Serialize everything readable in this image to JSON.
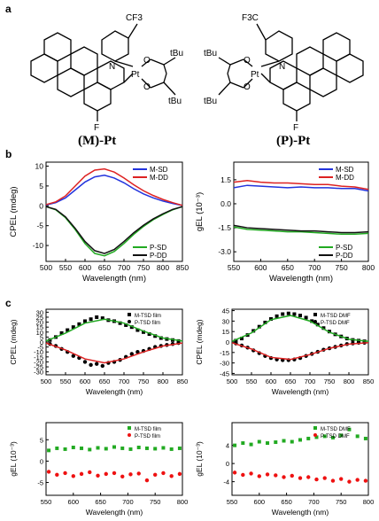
{
  "panel_labels": {
    "a": "a",
    "b": "b",
    "c": "c"
  },
  "molecules": {
    "left": {
      "label": "(M)-Pt",
      "cf3": "CF3",
      "n": "N",
      "pt": "Pt",
      "o1": "O",
      "o2": "O",
      "tbu1": "tBu",
      "tbu2": "tBu",
      "f": "F"
    },
    "right": {
      "label": "(P)-Pt",
      "cf3": "F3C",
      "n": "N",
      "pt": "Pt",
      "o1": "O",
      "o2": "O",
      "tbu1": "tBu",
      "tbu2": "tBu",
      "f": "F"
    }
  },
  "chart_data": [
    {
      "type": "line",
      "id": "b-left",
      "xlabel": "Wavelength (nm)",
      "ylabel": "CPEL (mdeg)",
      "xlim": [
        500,
        850
      ],
      "ylim": [
        -14,
        11
      ],
      "xticks": [
        500,
        550,
        600,
        650,
        700,
        750,
        800,
        850
      ],
      "yticks": [
        10,
        5,
        0,
        -5,
        -10
      ],
      "legend_top": "top-right",
      "legend_bottom": "bottom-right",
      "series": [
        {
          "name": "M-SD",
          "color": "#2233dd",
          "x": [
            500,
            525,
            550,
            575,
            600,
            625,
            650,
            675,
            700,
            725,
            750,
            775,
            800,
            825,
            850
          ],
          "y": [
            0.2,
            0.8,
            2.0,
            4.0,
            6.0,
            7.3,
            7.7,
            7.0,
            5.8,
            4.3,
            3.0,
            2.0,
            1.2,
            0.6,
            0.1
          ]
        },
        {
          "name": "M-DD",
          "color": "#dd2222",
          "x": [
            500,
            525,
            550,
            575,
            600,
            625,
            650,
            675,
            700,
            725,
            750,
            775,
            800,
            825,
            850
          ],
          "y": [
            0.3,
            1.0,
            2.5,
            5.0,
            7.5,
            9.0,
            9.3,
            8.5,
            7.0,
            5.3,
            3.8,
            2.6,
            1.6,
            0.8,
            0.1
          ]
        },
        {
          "name": "P-SD",
          "color": "#22aa22",
          "x": [
            500,
            525,
            550,
            575,
            600,
            625,
            650,
            675,
            700,
            725,
            750,
            775,
            800,
            825,
            850
          ],
          "y": [
            -0.2,
            -1.0,
            -3.0,
            -6.0,
            -9.5,
            -12.0,
            -12.6,
            -11.5,
            -9.5,
            -7.2,
            -5.2,
            -3.5,
            -2.2,
            -1.0,
            -0.2
          ]
        },
        {
          "name": "P-DD",
          "color": "#111111",
          "x": [
            500,
            525,
            550,
            575,
            600,
            625,
            650,
            675,
            700,
            725,
            750,
            775,
            800,
            825,
            850
          ],
          "y": [
            -0.2,
            -0.9,
            -2.8,
            -5.7,
            -9.0,
            -11.3,
            -12.0,
            -11.0,
            -9.0,
            -6.8,
            -4.9,
            -3.3,
            -2.0,
            -0.9,
            -0.2
          ]
        }
      ]
    },
    {
      "type": "line",
      "id": "b-right",
      "xlabel": "Wavelength (nm)",
      "ylabel": "gEL (10⁻³)",
      "xlim": [
        550,
        800
      ],
      "ylim": [
        -3.6,
        2.6
      ],
      "xticks": [
        550,
        600,
        650,
        700,
        750,
        800
      ],
      "yticks": [
        1.5,
        0.0,
        -1.5,
        -3.0
      ],
      "legend_top": "top-right",
      "legend_bottom": "bottom-right",
      "series": [
        {
          "name": "M-SD",
          "color": "#2233dd",
          "x": [
            550,
            575,
            600,
            625,
            650,
            675,
            700,
            725,
            750,
            775,
            800
          ],
          "y": [
            1.0,
            1.15,
            1.1,
            1.05,
            1.0,
            1.05,
            1.0,
            1.0,
            0.95,
            0.95,
            0.8
          ]
        },
        {
          "name": "M-DD",
          "color": "#dd2222",
          "x": [
            550,
            575,
            600,
            625,
            650,
            675,
            700,
            725,
            750,
            775,
            800
          ],
          "y": [
            1.35,
            1.45,
            1.35,
            1.3,
            1.3,
            1.25,
            1.2,
            1.2,
            1.1,
            1.05,
            0.9
          ]
        },
        {
          "name": "P-SD",
          "color": "#22aa22",
          "x": [
            550,
            575,
            600,
            625,
            650,
            675,
            700,
            725,
            750,
            775,
            800
          ],
          "y": [
            -1.45,
            -1.6,
            -1.65,
            -1.7,
            -1.75,
            -1.75,
            -1.8,
            -1.85,
            -1.9,
            -1.9,
            -1.85
          ]
        },
        {
          "name": "P-DD",
          "color": "#111111",
          "x": [
            550,
            575,
            600,
            625,
            650,
            675,
            700,
            725,
            750,
            775,
            800
          ],
          "y": [
            -1.35,
            -1.5,
            -1.55,
            -1.6,
            -1.65,
            -1.7,
            -1.7,
            -1.75,
            -1.8,
            -1.8,
            -1.75
          ]
        }
      ]
    },
    {
      "type": "scatter",
      "id": "c-top-left",
      "xlabel": "Wavelength (nm)",
      "ylabel": "CPEL (mdeg)",
      "xlim": [
        500,
        850
      ],
      "ylim": [
        -33,
        33
      ],
      "xticks": [
        500,
        550,
        600,
        650,
        700,
        750,
        800,
        850
      ],
      "yticks": [
        30,
        25,
        20,
        15,
        10,
        5,
        0,
        -5,
        -10,
        -15,
        -20,
        -25,
        -30
      ],
      "legend": "top-right",
      "series": [
        {
          "name": "M-TSD film",
          "marker": "square",
          "color": "#000000",
          "x": [
            510,
            525,
            540,
            555,
            570,
            585,
            600,
            615,
            630,
            645,
            660,
            675,
            690,
            705,
            720,
            735,
            750,
            765,
            780,
            795,
            810,
            825,
            840
          ],
          "y": [
            2,
            5,
            9,
            12,
            15,
            18,
            21,
            23,
            25,
            24,
            22,
            21,
            19,
            17,
            15,
            12,
            10,
            8,
            6,
            4,
            3,
            2,
            1
          ]
        },
        {
          "name": "P-TSD film",
          "marker": "circle",
          "color": "#000000",
          "x": [
            510,
            525,
            540,
            555,
            570,
            585,
            600,
            615,
            630,
            645,
            660,
            675,
            690,
            705,
            720,
            735,
            750,
            765,
            780,
            795,
            810,
            825,
            840
          ],
          "y": [
            -2,
            -4,
            -7,
            -10,
            -14,
            -16,
            -20,
            -23,
            -22,
            -24,
            -21,
            -20,
            -18,
            -15,
            -12,
            -10,
            -9,
            -7,
            -5,
            -4,
            -3,
            -2,
            -1
          ]
        },
        {
          "name": "M-TSD film fit",
          "line": true,
          "color": "#22aa22",
          "x": [
            500,
            550,
            600,
            650,
            700,
            750,
            800,
            850
          ],
          "y": [
            1,
            9,
            19,
            23,
            19,
            11,
            4,
            1
          ]
        },
        {
          "name": "P-TSD film fit",
          "line": true,
          "color": "#dd2222",
          "x": [
            500,
            550,
            600,
            650,
            700,
            750,
            800,
            850
          ],
          "y": [
            -1,
            -8,
            -17,
            -21,
            -17,
            -10,
            -4,
            -1
          ]
        }
      ]
    },
    {
      "type": "scatter",
      "id": "c-top-right",
      "xlabel": "Wavelength (nm)",
      "ylabel": "CPEL (mdeg)",
      "xlim": [
        500,
        850
      ],
      "ylim": [
        -47,
        47
      ],
      "xticks": [
        500,
        550,
        600,
        650,
        700,
        750,
        800,
        850
      ],
      "yticks": [
        45,
        30,
        15,
        0,
        -15,
        -30,
        -45
      ],
      "legend": "top-right",
      "series": [
        {
          "name": "M-TSD DMF",
          "marker": "square",
          "color": "#000000",
          "x": [
            510,
            525,
            540,
            555,
            570,
            585,
            600,
            615,
            630,
            645,
            660,
            675,
            690,
            705,
            720,
            735,
            750,
            765,
            780,
            795,
            810,
            825,
            840
          ],
          "y": [
            2,
            5,
            10,
            16,
            22,
            28,
            33,
            37,
            40,
            41,
            40,
            38,
            35,
            30,
            25,
            20,
            15,
            11,
            8,
            5,
            3,
            2,
            1
          ]
        },
        {
          "name": "P-TSD DMF",
          "marker": "circle",
          "color": "#000000",
          "x": [
            510,
            525,
            540,
            555,
            570,
            585,
            600,
            615,
            630,
            645,
            660,
            675,
            690,
            705,
            720,
            735,
            750,
            765,
            780,
            795,
            810,
            825,
            840
          ],
          "y": [
            -2,
            -5,
            -8,
            -12,
            -16,
            -20,
            -23,
            -25,
            -26,
            -26,
            -25,
            -23,
            -20,
            -17,
            -14,
            -11,
            -9,
            -7,
            -5,
            -3,
            -2,
            -1,
            -1
          ]
        },
        {
          "name": "M-TSD DMF fit",
          "line": true,
          "color": "#22aa22",
          "x": [
            500,
            550,
            600,
            650,
            700,
            750,
            800,
            850
          ],
          "y": [
            1,
            13,
            32,
            38,
            30,
            14,
            4,
            1
          ]
        },
        {
          "name": "P-TSD DMF fit",
          "line": true,
          "color": "#dd2222",
          "x": [
            500,
            550,
            600,
            650,
            700,
            750,
            800,
            850
          ],
          "y": [
            -1,
            -10,
            -22,
            -25,
            -18,
            -9,
            -3,
            -1
          ]
        }
      ]
    },
    {
      "type": "scatter",
      "id": "c-bottom-left",
      "xlabel": "Wavelength (nm)",
      "ylabel": "gEL (10⁻³)",
      "xlim": [
        550,
        800
      ],
      "ylim": [
        -8,
        9
      ],
      "xticks": [
        550,
        600,
        650,
        700,
        750,
        800
      ],
      "yticks": [
        5,
        0,
        -5
      ],
      "legend": "top-right",
      "series": [
        {
          "name": "M-TSD film",
          "marker": "square",
          "color": "#22aa22",
          "x": [
            555,
            570,
            585,
            600,
            615,
            630,
            645,
            660,
            675,
            690,
            705,
            720,
            735,
            750,
            765,
            780,
            795
          ],
          "y": [
            2.5,
            3.0,
            2.8,
            3.2,
            3.0,
            2.7,
            3.1,
            2.9,
            3.3,
            3.0,
            2.8,
            3.2,
            3.0,
            2.9,
            3.1,
            2.8,
            3.0
          ]
        },
        {
          "name": "P-TSD film",
          "marker": "circle",
          "color": "#ee1111",
          "x": [
            555,
            570,
            585,
            600,
            615,
            630,
            645,
            660,
            675,
            690,
            705,
            720,
            735,
            750,
            765,
            780,
            795
          ],
          "y": [
            -2.5,
            -3.2,
            -2.8,
            -3.5,
            -3.0,
            -2.6,
            -3.4,
            -3.0,
            -2.8,
            -3.6,
            -3.1,
            -2.9,
            -4.5,
            -3.2,
            -2.8,
            -3.5,
            -3.0
          ]
        }
      ]
    },
    {
      "type": "scatter",
      "id": "c-bottom-right",
      "xlabel": "Wavelength (nm)",
      "ylabel": "gEL (10⁻³)",
      "xlim": [
        550,
        800
      ],
      "ylim": [
        -7,
        9
      ],
      "xticks": [
        550,
        600,
        650,
        700,
        750,
        800
      ],
      "yticks": [
        4,
        0,
        -4
      ],
      "legend": "top-right",
      "series": [
        {
          "name": "M-TSD DMF",
          "marker": "square",
          "color": "#22aa22",
          "x": [
            555,
            570,
            585,
            600,
            615,
            630,
            645,
            660,
            675,
            690,
            705,
            720,
            735,
            750,
            765,
            780,
            795
          ],
          "y": [
            4.0,
            4.5,
            4.2,
            4.8,
            4.5,
            4.7,
            5.0,
            4.8,
            5.2,
            5.5,
            5.8,
            6.0,
            5.7,
            6.2,
            7.5,
            6.0,
            5.5
          ]
        },
        {
          "name": "P-TSD DMF",
          "marker": "circle",
          "color": "#ee1111",
          "x": [
            555,
            570,
            585,
            600,
            615,
            630,
            645,
            660,
            675,
            690,
            705,
            720,
            735,
            750,
            765,
            780,
            795
          ],
          "y": [
            -2.0,
            -2.5,
            -2.2,
            -2.8,
            -2.4,
            -2.6,
            -3.0,
            -2.7,
            -3.2,
            -3.0,
            -3.5,
            -3.2,
            -3.8,
            -3.4,
            -4.0,
            -3.6,
            -3.8
          ]
        }
      ]
    }
  ],
  "legend_labels": {
    "b-left": [
      "M-SD",
      "M-DD",
      "P-SD",
      "P-DD"
    ],
    "b-right": [
      "M-SD",
      "M-DD",
      "P-SD",
      "P-DD"
    ],
    "c-top-left": [
      "M-TSD film",
      "P-TSD film"
    ],
    "c-top-right": [
      "M-TSD DMF",
      "P-TSD DMF"
    ],
    "c-bottom-left": [
      "M-TSD film",
      "P-TSD film"
    ],
    "c-bottom-right": [
      "M-TSD DMF",
      "P-TSD DMF"
    ]
  }
}
